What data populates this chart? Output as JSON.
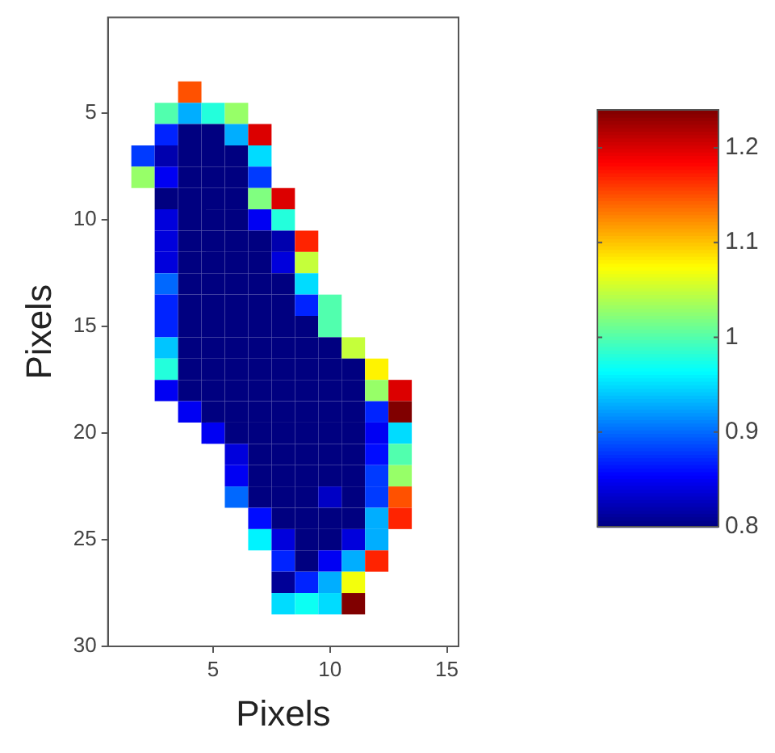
{
  "chart_data": {
    "type": "heatmap",
    "xlabel": "Pixels",
    "ylabel": "Pixels",
    "x": [
      2,
      3,
      4,
      5,
      6,
      7,
      8,
      9,
      10,
      11,
      12,
      13
    ],
    "y": [
      4,
      5,
      6,
      7,
      8,
      9,
      10,
      11,
      12,
      13,
      14,
      15,
      16,
      17,
      18,
      19,
      20,
      21,
      22,
      23,
      24,
      25,
      26,
      27,
      28
    ],
    "xlim": [
      0.5,
      15.5
    ],
    "xticks": [
      5,
      10,
      15
    ],
    "ylim": [
      30,
      0.5
    ],
    "yticks": [
      5,
      10,
      15,
      20,
      25,
      30
    ],
    "clim": [
      0.8,
      1.24
    ],
    "cticks": [
      0.8,
      0.9,
      1,
      1.1,
      1.2
    ],
    "grid": false,
    "cells": [
      [
        null,
        null,
        1.15,
        null,
        null,
        null,
        null,
        null,
        null,
        null,
        null,
        null
      ],
      [
        null,
        1.0,
        0.93,
        0.98,
        1.03,
        null,
        null,
        null,
        null,
        null,
        null,
        null
      ],
      [
        null,
        0.87,
        0.8,
        0.8,
        0.93,
        1.2,
        null,
        null,
        null,
        null,
        null,
        null
      ],
      [
        0.88,
        0.82,
        0.8,
        0.8,
        0.8,
        0.95,
        null,
        null,
        null,
        null,
        null,
        null
      ],
      [
        1.03,
        0.85,
        0.8,
        0.8,
        0.8,
        0.88,
        null,
        null,
        null,
        null,
        null,
        null
      ],
      [
        null,
        0.8,
        0.8,
        0.8,
        0.8,
        1.02,
        1.2,
        null,
        null,
        null,
        null,
        null
      ],
      [
        null,
        0.84,
        0.8,
        0.8,
        0.8,
        0.85,
        0.98,
        null,
        null,
        null,
        null,
        null
      ],
      [
        null,
        0.84,
        0.8,
        0.8,
        0.8,
        0.8,
        0.82,
        1.17,
        null,
        null,
        null,
        null
      ],
      [
        null,
        0.84,
        0.8,
        0.8,
        0.8,
        0.8,
        0.84,
        1.05,
        null,
        null,
        null,
        null
      ],
      [
        null,
        0.9,
        0.8,
        0.8,
        0.8,
        0.8,
        0.8,
        0.95,
        null,
        null,
        null,
        null
      ],
      [
        null,
        0.87,
        0.8,
        0.8,
        0.8,
        0.8,
        0.8,
        0.87,
        1.0,
        null,
        null,
        null
      ],
      [
        null,
        0.87,
        0.8,
        0.8,
        0.8,
        0.8,
        0.8,
        0.8,
        1.0,
        null,
        null,
        null
      ],
      [
        null,
        0.94,
        0.8,
        0.8,
        0.8,
        0.8,
        0.8,
        0.8,
        0.8,
        1.05,
        null,
        null
      ],
      [
        null,
        0.98,
        0.8,
        0.8,
        0.8,
        0.8,
        0.8,
        0.8,
        0.8,
        0.8,
        1.08,
        null
      ],
      [
        null,
        0.85,
        0.8,
        0.8,
        0.8,
        0.8,
        0.8,
        0.8,
        0.8,
        0.8,
        1.03,
        1.2
      ],
      [
        null,
        null,
        0.85,
        0.8,
        0.8,
        0.8,
        0.8,
        0.8,
        0.8,
        0.8,
        0.87,
        1.24
      ],
      [
        null,
        null,
        null,
        0.85,
        0.8,
        0.8,
        0.8,
        0.8,
        0.8,
        0.8,
        0.85,
        0.95
      ],
      [
        null,
        null,
        null,
        null,
        0.84,
        0.8,
        0.8,
        0.8,
        0.8,
        0.8,
        0.86,
        1.0
      ],
      [
        null,
        null,
        null,
        null,
        0.85,
        0.8,
        0.8,
        0.8,
        0.8,
        0.8,
        0.88,
        1.03
      ],
      [
        null,
        null,
        null,
        null,
        0.9,
        0.8,
        0.8,
        0.8,
        0.83,
        0.8,
        0.88,
        1.15
      ],
      [
        null,
        null,
        null,
        null,
        null,
        0.86,
        0.8,
        0.8,
        0.8,
        0.8,
        0.93,
        1.17
      ],
      [
        null,
        null,
        null,
        null,
        null,
        0.96,
        0.84,
        0.8,
        0.8,
        0.84,
        0.93,
        null
      ],
      [
        null,
        null,
        null,
        null,
        null,
        null,
        0.87,
        0.8,
        0.85,
        0.93,
        1.17,
        null
      ],
      [
        null,
        null,
        null,
        null,
        null,
        null,
        0.81,
        0.87,
        0.93,
        1.07,
        null,
        null
      ],
      [
        null,
        null,
        null,
        null,
        null,
        null,
        0.95,
        0.97,
        0.95,
        1.24,
        null,
        null
      ]
    ]
  }
}
